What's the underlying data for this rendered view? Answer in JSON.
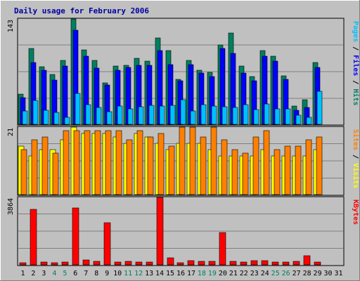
{
  "chart_data": {
    "type": "bar",
    "title": "Daily usage for February 2006",
    "x": [
      "1",
      "2",
      "3",
      "4",
      "5",
      "6",
      "7",
      "8",
      "9",
      "10",
      "11",
      "12",
      "13",
      "14",
      "15",
      "16",
      "17",
      "18",
      "19",
      "20",
      "21",
      "22",
      "23",
      "24",
      "25",
      "26",
      "27",
      "28",
      "29",
      "30",
      "31"
    ],
    "weekend_days": [
      "4",
      "5",
      "11",
      "12",
      "18",
      "19",
      "25",
      "26"
    ],
    "panels": [
      {
        "id": "top",
        "ymax": 143,
        "ymax_label": "143",
        "series": [
          {
            "name": "Hits",
            "color": "#008060",
            "values": [
              41,
              103,
              78,
              68,
              87,
              143,
              101,
              87,
              56,
              79,
              80,
              90,
              86,
              117,
              100,
              61,
              87,
              73,
              71,
              108,
              124,
              79,
              65,
              100,
              92,
              66,
              25,
              33,
              84,
              0,
              0
            ]
          },
          {
            "name": "Files",
            "color": "#0000ff",
            "values": [
              36,
              84,
              73,
              60,
              79,
              128,
              92,
              76,
              53,
              73,
              77,
              80,
              80,
              100,
              81,
              59,
              81,
              70,
              65,
              103,
              96,
              70,
              59,
              92,
              86,
              61,
              19,
              23,
              77,
              0,
              0
            ]
          },
          {
            "name": "Pages",
            "color": "#00c0ff",
            "values": [
              18,
              32,
              19,
              16,
              10,
              42,
              27,
              23,
              17,
              25,
              21,
              24,
              26,
              25,
              26,
              33,
              18,
              27,
              25,
              24,
              23,
              27,
              20,
              28,
              21,
              21,
              12,
              10,
              45,
              0,
              0
            ]
          }
        ],
        "legend": [
          {
            "text": "Pages",
            "color": "#00c0ff"
          },
          {
            "text": " / ",
            "color": "#000000"
          },
          {
            "text": "Files",
            "color": "#0000ff"
          },
          {
            "text": " / ",
            "color": "#000000"
          },
          {
            "text": "Hits",
            "color": "#008060"
          }
        ]
      },
      {
        "id": "mid",
        "ymax": 21,
        "ymax_label": "21",
        "series": [
          {
            "name": "Visits",
            "color": "#ffff00",
            "values": [
              15,
              12,
              14,
              14,
              17,
              21,
              19,
              19,
              19,
              18,
              16,
              19,
              18,
              16,
              14,
              16,
              16,
              16,
              14,
              12,
              12,
              12,
              12,
              14,
              12,
              12,
              12,
              12,
              14,
              0,
              0
            ]
          },
          {
            "name": "Sites",
            "color": "#ff8000",
            "values": [
              14,
              17,
              18,
              13,
              20,
              20,
              20,
              20,
              20,
              20,
              17,
              20,
              18,
              19,
              15,
              21,
              21,
              18,
              21,
              17,
              14,
              13,
              18,
              20,
              14,
              15,
              15,
              17,
              18,
              0,
              0
            ]
          }
        ],
        "legend": [
          {
            "text": "Sites",
            "color": "#ff8000"
          },
          {
            "text": " / ",
            "color": "#000000"
          },
          {
            "text": "Visits",
            "color": "#ffff00"
          }
        ]
      },
      {
        "id": "bot",
        "ymax": 3864,
        "ymax_label": "3864",
        "series": [
          {
            "name": "KBytes",
            "color": "#ff0000",
            "values": [
              130,
              3180,
              165,
              130,
              175,
              3250,
              265,
              200,
              2400,
              175,
              190,
              160,
              175,
              3864,
              390,
              130,
              225,
              190,
              185,
              1840,
              215,
              160,
              235,
              255,
              175,
              160,
              200,
              530,
              145,
              0,
              0
            ]
          }
        ],
        "legend": [
          {
            "text": "KBytes",
            "color": "#ff0000"
          }
        ]
      }
    ]
  }
}
